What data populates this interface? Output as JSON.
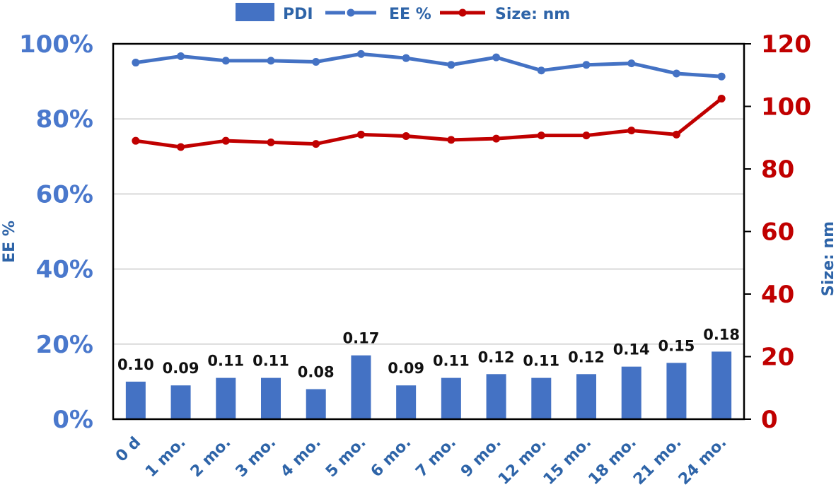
{
  "chart_data": {
    "type": "bar",
    "categories": [
      "0 d",
      "1 mo.",
      "2 mo.",
      "3 mo.",
      "4 mo.",
      "5 mo.",
      "6 mo.",
      "7 mo.",
      "9 mo.",
      "12 mo.",
      "15 mo.",
      "18 mo.",
      "21 mo.",
      "24 mo."
    ],
    "series": [
      {
        "name": "PDI",
        "type": "bar",
        "axis": "left",
        "values": [
          0.1,
          0.09,
          0.11,
          0.11,
          0.08,
          0.17,
          0.09,
          0.11,
          0.12,
          0.11,
          0.12,
          0.14,
          0.15,
          0.18
        ],
        "data_labels": [
          "0.10",
          "0.09",
          "0.11",
          "0.11",
          "0.08",
          "0.17",
          "0.09",
          "0.11",
          "0.12",
          "0.11",
          "0.12",
          "0.14",
          "0.15",
          "0.18"
        ],
        "color": "#4472c4"
      },
      {
        "name": "EE %",
        "type": "line",
        "axis": "left",
        "values": [
          0.95,
          0.967,
          0.955,
          0.955,
          0.952,
          0.973,
          0.962,
          0.944,
          0.964,
          0.929,
          0.944,
          0.948,
          0.921,
          0.913
        ],
        "color": "#4472c4"
      },
      {
        "name": "Size: nm",
        "type": "line",
        "axis": "right",
        "values": [
          89,
          87,
          89,
          88.5,
          88,
          91,
          90.5,
          89.3,
          89.7,
          90.7,
          90.7,
          92.3,
          91,
          102.5
        ],
        "color": "#c00000"
      }
    ],
    "ylabel": "EE %",
    "ylim": [
      0,
      1
    ],
    "y_ticks": [
      "0%",
      "20%",
      "40%",
      "60%",
      "80%",
      "100%"
    ],
    "y2label": "Size: nm",
    "y2lim": [
      0,
      120
    ],
    "y2_ticks": [
      "0",
      "20",
      "40",
      "60",
      "80",
      "100",
      "120"
    ],
    "grid": true,
    "legend_position": "top"
  }
}
